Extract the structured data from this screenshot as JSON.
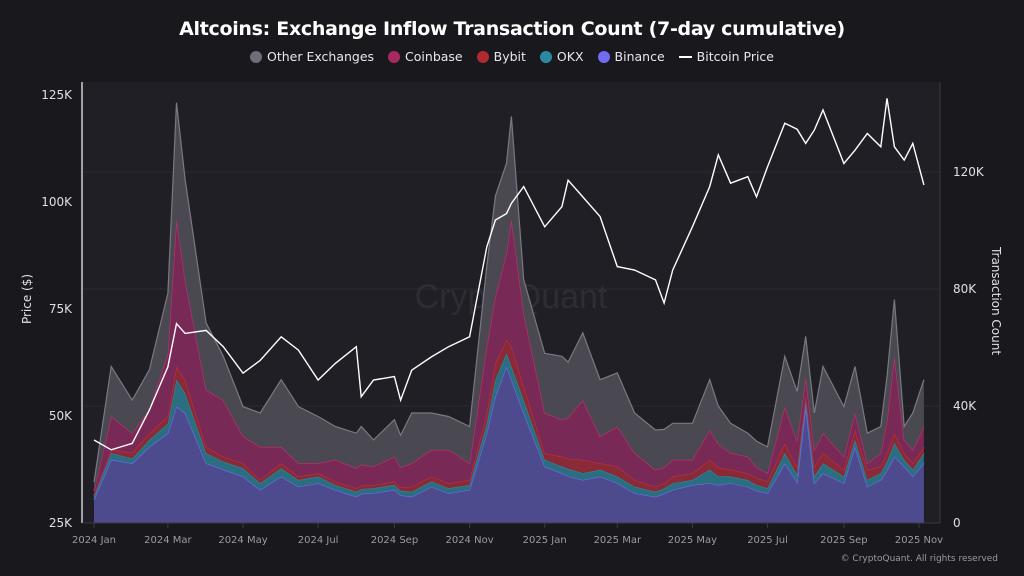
{
  "chart_data": {
    "type": "area",
    "stacked": true,
    "title": "Altcoins: Exchange Inflow Transaction Count (7-day cumulative)",
    "legend_position": "top",
    "grid": true,
    "watermark": "CryptoQuant",
    "copyright": "© CryptoQuant. All rights reserved",
    "x_ticks": [
      "2024 Jan",
      "2024 Mar",
      "2024 May",
      "2024 Jul",
      "2024 Sep",
      "2024 Nov",
      "2025 Jan",
      "2025 Mar",
      "2025 May",
      "2025 Jul",
      "2025 Sep",
      "2025 Nov"
    ],
    "x_tick_dates": [
      "2024-01-01",
      "2024-03-01",
      "2024-05-01",
      "2024-07-01",
      "2024-09-01",
      "2024-11-01",
      "2025-01-01",
      "2025-03-01",
      "2025-05-01",
      "2025-07-01",
      "2025-09-01",
      "2025-11-01"
    ],
    "y_left": {
      "label": "Price ($)",
      "range": [
        25000,
        125000
      ],
      "ticks": [
        "25K",
        "50K",
        "75K",
        "100K",
        "125K"
      ],
      "tick_values": [
        25000,
        50000,
        75000,
        100000,
        125000
      ]
    },
    "y_right": {
      "label": "Transaction Count",
      "range": [
        0,
        160000
      ],
      "ticks": [
        "0",
        "40K",
        "80K",
        "120K"
      ],
      "tick_values": [
        0,
        40000,
        80000,
        120000
      ]
    },
    "x": [
      "2024-01-01",
      "2024-01-15",
      "2024-02-01",
      "2024-02-15",
      "2024-03-01",
      "2024-03-08",
      "2024-03-15",
      "2024-04-01",
      "2024-04-15",
      "2024-05-01",
      "2024-05-15",
      "2024-06-01",
      "2024-06-15",
      "2024-07-01",
      "2024-07-15",
      "2024-08-01",
      "2024-08-05",
      "2024-08-15",
      "2024-09-01",
      "2024-09-06",
      "2024-09-15",
      "2024-10-01",
      "2024-10-15",
      "2024-11-01",
      "2024-11-15",
      "2024-11-22",
      "2024-12-01",
      "2024-12-05",
      "2024-12-15",
      "2025-01-01",
      "2025-01-15",
      "2025-01-20",
      "2025-02-01",
      "2025-02-15",
      "2025-03-01",
      "2025-03-15",
      "2025-04-01",
      "2025-04-08",
      "2025-04-15",
      "2025-05-01",
      "2025-05-15",
      "2025-05-22",
      "2025-06-01",
      "2025-06-15",
      "2025-06-22",
      "2025-07-01",
      "2025-07-15",
      "2025-07-25",
      "2025-08-01",
      "2025-08-08",
      "2025-08-15",
      "2025-09-01",
      "2025-09-10",
      "2025-09-20",
      "2025-10-01",
      "2025-10-06",
      "2025-10-12",
      "2025-10-20",
      "2025-10-27",
      "2025-11-05"
    ],
    "series": [
      {
        "name": "Binance",
        "axis": "right",
        "color": "#6f6cf0",
        "fill": "#4d4a8e",
        "values": [
          8000,
          21600,
          20400,
          26000,
          30700,
          39800,
          37600,
          20400,
          18300,
          15900,
          11300,
          15900,
          12400,
          13600,
          11300,
          9000,
          10000,
          10200,
          11300,
          9500,
          9000,
          12400,
          10200,
          11300,
          30700,
          43300,
          53500,
          49000,
          37600,
          19300,
          17000,
          16000,
          14700,
          15900,
          13600,
          10200,
          9000,
          10000,
          11300,
          13000,
          13600,
          13000,
          13600,
          12400,
          11000,
          10200,
          20400,
          14000,
          39800,
          13600,
          17000,
          13600,
          26000,
          12400,
          14700,
          18000,
          22700,
          19300,
          16000,
          20400
        ]
      },
      {
        "name": "OKX",
        "axis": "right",
        "color": "#2b8aa3",
        "fill": "#2a6e80",
        "values": [
          1000,
          2300,
          1600,
          2400,
          3300,
          9200,
          6800,
          3500,
          2700,
          2800,
          2300,
          2800,
          2300,
          2300,
          1700,
          1700,
          1600,
          1700,
          1700,
          1500,
          1700,
          1800,
          1700,
          1700,
          3300,
          5700,
          4500,
          4500,
          4400,
          2300,
          2300,
          2500,
          2300,
          2300,
          2300,
          2200,
          1700,
          1800,
          2300,
          1700,
          4600,
          3000,
          2300,
          2300,
          2000,
          1700,
          3500,
          2500,
          2200,
          2300,
          3400,
          2300,
          2400,
          2300,
          2300,
          3000,
          4600,
          2300,
          2200,
          3500
        ]
      },
      {
        "name": "Bybit",
        "axis": "right",
        "color": "#c0303c",
        "fill": "#8a2a36",
        "values": [
          500,
          1100,
          2000,
          2300,
          2400,
          4500,
          4600,
          2100,
          1700,
          1700,
          1100,
          1700,
          1200,
          1100,
          1200,
          1200,
          1200,
          1100,
          1200,
          1200,
          1700,
          1700,
          1700,
          1700,
          3600,
          5700,
          4600,
          6900,
          4700,
          2300,
          3400,
          3500,
          4600,
          2200,
          3400,
          2300,
          1700,
          1700,
          2300,
          2300,
          3400,
          3000,
          2300,
          2300,
          2500,
          2300,
          3400,
          2500,
          1300,
          3400,
          3500,
          2300,
          3400,
          3500,
          2300,
          3000,
          3400,
          2300,
          2200,
          2100
        ]
      },
      {
        "name": "Coinbase",
        "axis": "right",
        "color": "#c2306e",
        "fill": "#782955",
        "values": [
          1500,
          11400,
          6700,
          8000,
          21600,
          50300,
          34000,
          19500,
          19300,
          9200,
          11300,
          5600,
          4500,
          3400,
          7400,
          6800,
          7200,
          6300,
          8500,
          6800,
          8000,
          9100,
          11400,
          5700,
          22800,
          22800,
          29700,
          43400,
          25100,
          13700,
          12600,
          14000,
          20400,
          9200,
          13700,
          9200,
          5800,
          5500,
          5700,
          4600,
          10200,
          8000,
          5700,
          5700,
          3500,
          2800,
          12500,
          9000,
          6700,
          5700,
          6800,
          4500,
          5800,
          2200,
          4600,
          11000,
          26300,
          4500,
          4600,
          7000
        ]
      },
      {
        "name": "Other Exchanges",
        "axis": "right",
        "color": "#7a7983",
        "fill": "#4a4952",
        "values": [
          3000,
          17100,
          11300,
          13700,
          20600,
          39900,
          34500,
          22900,
          15000,
          10200,
          11600,
          23000,
          19400,
          16000,
          11400,
          12000,
          13000,
          9100,
          12600,
          11000,
          17200,
          12600,
          11400,
          12600,
          27400,
          34300,
          30700,
          35200,
          11400,
          20400,
          21700,
          19000,
          23000,
          19400,
          18300,
          13700,
          13600,
          13000,
          12500,
          12500,
          17200,
          13000,
          10200,
          8000,
          9000,
          9000,
          17200,
          17000,
          13800,
          12600,
          22800,
          17100,
          15900,
          10300,
          9100,
          15000,
          19400,
          4600,
          12600,
          16000
        ]
      },
      {
        "name": "Bitcoin Price",
        "axis": "left",
        "type": "line",
        "color": "#ffffff",
        "values": [
          44400,
          42100,
          43600,
          51400,
          61500,
          71600,
          69300,
          70000,
          66200,
          60000,
          63000,
          68500,
          65400,
          58400,
          62300,
          66200,
          54500,
          58400,
          59200,
          53700,
          60700,
          63800,
          66200,
          68500,
          89500,
          95800,
          97300,
          99700,
          103600,
          94200,
          98900,
          105100,
          101200,
          96600,
          84900,
          84100,
          81800,
          76400,
          84100,
          94200,
          103600,
          111000,
          104400,
          105900,
          101200,
          108200,
          118400,
          117000,
          113700,
          116800,
          121500,
          109000,
          112100,
          116000,
          112900,
          124200,
          112900,
          109800,
          113700,
          104000
        ]
      }
    ]
  },
  "legend": [
    {
      "label": "Other Exchanges",
      "color": "#6e6d78",
      "kind": "dot"
    },
    {
      "label": "Coinbase",
      "color": "#a8285f",
      "kind": "dot"
    },
    {
      "label": "Bybit",
      "color": "#b02a30",
      "kind": "dot"
    },
    {
      "label": "OKX",
      "color": "#2b8aa3",
      "kind": "dot"
    },
    {
      "label": "Binance",
      "color": "#6f6cf0",
      "kind": "dot"
    },
    {
      "label": "Bitcoin Price",
      "color": "#ffffff",
      "kind": "line"
    }
  ]
}
